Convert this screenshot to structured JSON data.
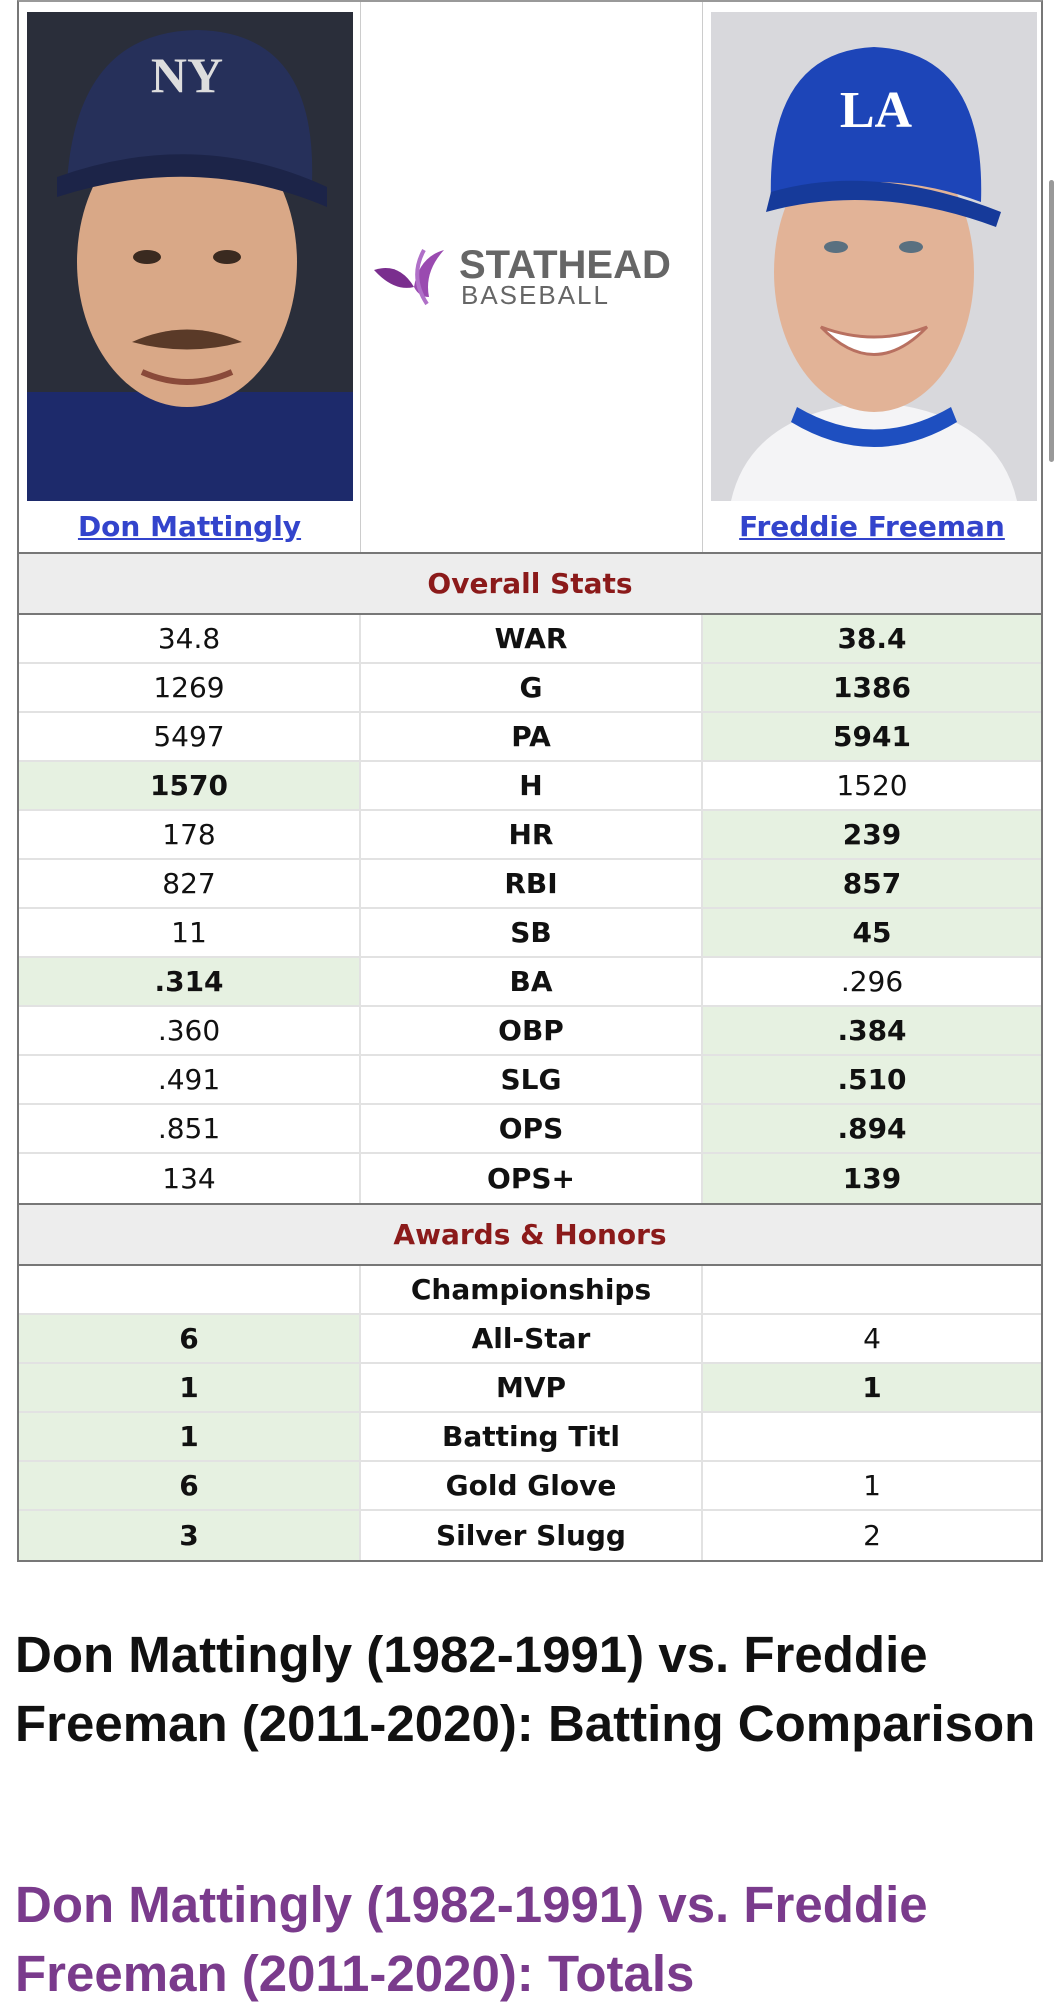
{
  "players": [
    {
      "name": "Don Mattingly"
    },
    {
      "name": "Freddie Freeman"
    }
  ],
  "logo": {
    "line1": "STATHEAD",
    "line2": "BASEBALL"
  },
  "sections": [
    {
      "title": "Overall Stats",
      "rows": [
        {
          "stat": "WAR",
          "left": "34.8",
          "right": "38.4",
          "leader": "right"
        },
        {
          "stat": "G",
          "left": "1269",
          "right": "1386",
          "leader": "right"
        },
        {
          "stat": "PA",
          "left": "5497",
          "right": "5941",
          "leader": "right"
        },
        {
          "stat": "H",
          "left": "1570",
          "right": "1520",
          "leader": "left"
        },
        {
          "stat": "HR",
          "left": "178",
          "right": "239",
          "leader": "right"
        },
        {
          "stat": "RBI",
          "left": "827",
          "right": "857",
          "leader": "right"
        },
        {
          "stat": "SB",
          "left": "11",
          "right": "45",
          "leader": "right"
        },
        {
          "stat": "BA",
          "left": ".314",
          "right": ".296",
          "leader": "left"
        },
        {
          "stat": "OBP",
          "left": ".360",
          "right": ".384",
          "leader": "right"
        },
        {
          "stat": "SLG",
          "left": ".491",
          "right": ".510",
          "leader": "right"
        },
        {
          "stat": "OPS",
          "left": ".851",
          "right": ".894",
          "leader": "right"
        },
        {
          "stat": "OPS+",
          "left": "134",
          "right": "139",
          "leader": "right"
        }
      ]
    },
    {
      "title": "Awards & Honors",
      "rows": [
        {
          "stat": "Championships",
          "left": null,
          "right": null,
          "leader": null
        },
        {
          "stat": "All-Star",
          "left": "6",
          "right": "4",
          "leader": "left"
        },
        {
          "stat": "MVP",
          "left": "1",
          "right": "1",
          "leader": "both"
        },
        {
          "stat": "Batting Titl",
          "left": "1",
          "right": null,
          "leader": "left"
        },
        {
          "stat": "Gold Glove",
          "left": "6",
          "right": "1",
          "leader": "left"
        },
        {
          "stat": "Silver Slugg",
          "left": "3",
          "right": "2",
          "leader": "left"
        }
      ]
    }
  ],
  "headings": [
    "Don Mattingly (1982-1991) vs. Freddie Freeman (2011-2020): Batting Comparison",
    "Don Mattingly (1982-1991) vs. Freddie Freeman (2011-2020): Totals"
  ]
}
